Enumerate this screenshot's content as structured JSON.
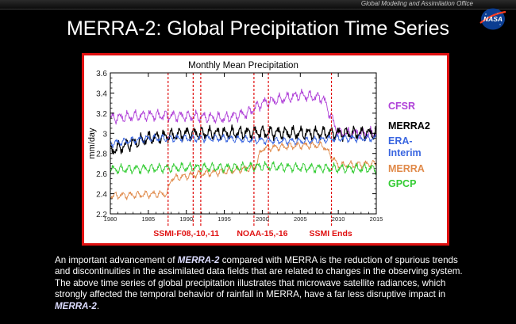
{
  "header": {
    "office": "Global Modeling and Assimilation Office",
    "title": "MERRA-2: Global Precipitation Time Series",
    "logo": "NASA"
  },
  "description": {
    "p1": "An important advancement of ",
    "em1": "MERRA-2",
    "p2": " compared with MERRA is the reduction of spurious trends and discontinuities in the assimilated data fields that are related to changes in the observing system.  The above time series of global precipitation illustrates that microwave satellite radiances, which strongly affected the temporal behavior of rainfall in MERRA, have a far less disruptive impact in ",
    "em2": "MERRA-2",
    "p3": "."
  },
  "chart_data": {
    "type": "line",
    "title": "Monthly Mean Precipitation",
    "xlabel": "",
    "ylabel": "mm/day",
    "xlim": [
      1980,
      2015
    ],
    "ylim": [
      2.2,
      3.6
    ],
    "xticks": [
      "1980",
      "1985",
      "1990",
      "1995",
      "2000",
      "2005",
      "2010",
      "2015"
    ],
    "yticks": [
      "2.2",
      "2.4",
      "2.6",
      "2.8",
      "3",
      "3.2",
      "3.4",
      "3.6"
    ],
    "grid": false,
    "legend_position": "right",
    "series": [
      {
        "name": "CFSR",
        "color": "#b042d8",
        "years": [
          1980,
          1985,
          1990,
          1995,
          1998,
          2000,
          2005,
          2008,
          2010,
          2012,
          2015
        ],
        "values": [
          3.15,
          3.18,
          3.17,
          3.15,
          3.2,
          3.3,
          3.38,
          3.35,
          3.0,
          3.0,
          3.0
        ],
        "amplitude": 0.06
      },
      {
        "name": "MERRA2",
        "color": "#000000",
        "years": [
          1980,
          1985,
          1990,
          1995,
          2000,
          2005,
          2010,
          2015
        ],
        "values": [
          2.83,
          2.95,
          3.0,
          3.0,
          3.01,
          3.0,
          3.0,
          3.0
        ],
        "amplitude": 0.07
      },
      {
        "name": "ERA-Interim",
        "color": "#3a66e0",
        "years": [
          1980,
          1985,
          1990,
          1995,
          2000,
          2005,
          2010,
          2015
        ],
        "values": [
          2.9,
          2.95,
          2.95,
          2.95,
          2.93,
          2.92,
          2.95,
          2.95
        ],
        "amplitude": 0.04
      },
      {
        "name": "MERRA",
        "color": "#e08a4a",
        "years": [
          1980,
          1987.5,
          1988,
          1992,
          1995,
          1999,
          2000,
          2005,
          2008,
          2009,
          2010,
          2015
        ],
        "values": [
          2.38,
          2.4,
          2.55,
          2.6,
          2.62,
          2.66,
          2.85,
          2.88,
          2.88,
          2.78,
          2.68,
          2.7
        ],
        "amplitude": 0.04
      },
      {
        "name": "GPCP",
        "color": "#33cc33",
        "years": [
          1980,
          1985,
          1990,
          1995,
          2000,
          2005,
          2010,
          2015
        ],
        "values": [
          2.64,
          2.65,
          2.66,
          2.66,
          2.67,
          2.66,
          2.65,
          2.65
        ],
        "amplitude": 0.05
      }
    ],
    "events": [
      1987.6,
      1990.9,
      1991.9,
      1998.9,
      2000.8,
      2009.1
    ],
    "event_labels": [
      {
        "text": "SSMI-F08,-10,-11",
        "x": 1990
      },
      {
        "text": "NOAA-15,-16",
        "x": 2000
      },
      {
        "text": "SSMI Ends",
        "x": 2009
      }
    ],
    "colors": {
      "events": "#e01010",
      "frame": "#e01010",
      "merra2_emphasis": "#dcdcff"
    }
  }
}
